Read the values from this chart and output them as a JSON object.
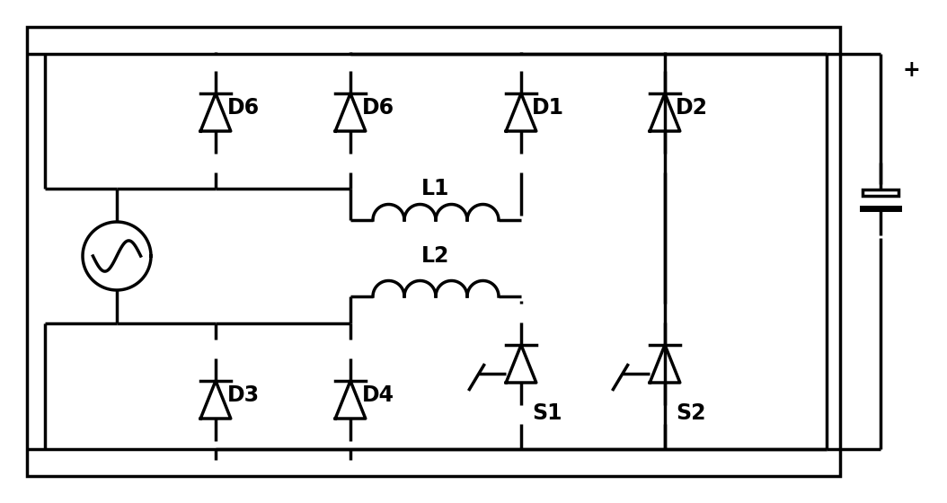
{
  "bg_color": "#ffffff",
  "line_color": "#000000",
  "line_width": 2.5,
  "fig_width": 10.54,
  "fig_height": 5.6,
  "labels": {
    "D6_left": "D6",
    "D6_mid": "D6",
    "D1": "D1",
    "D2": "D2",
    "D3": "D3",
    "D4": "D4",
    "L1": "L1",
    "L2": "L2",
    "S1": "S1",
    "S2": "S2",
    "plus": "+"
  }
}
